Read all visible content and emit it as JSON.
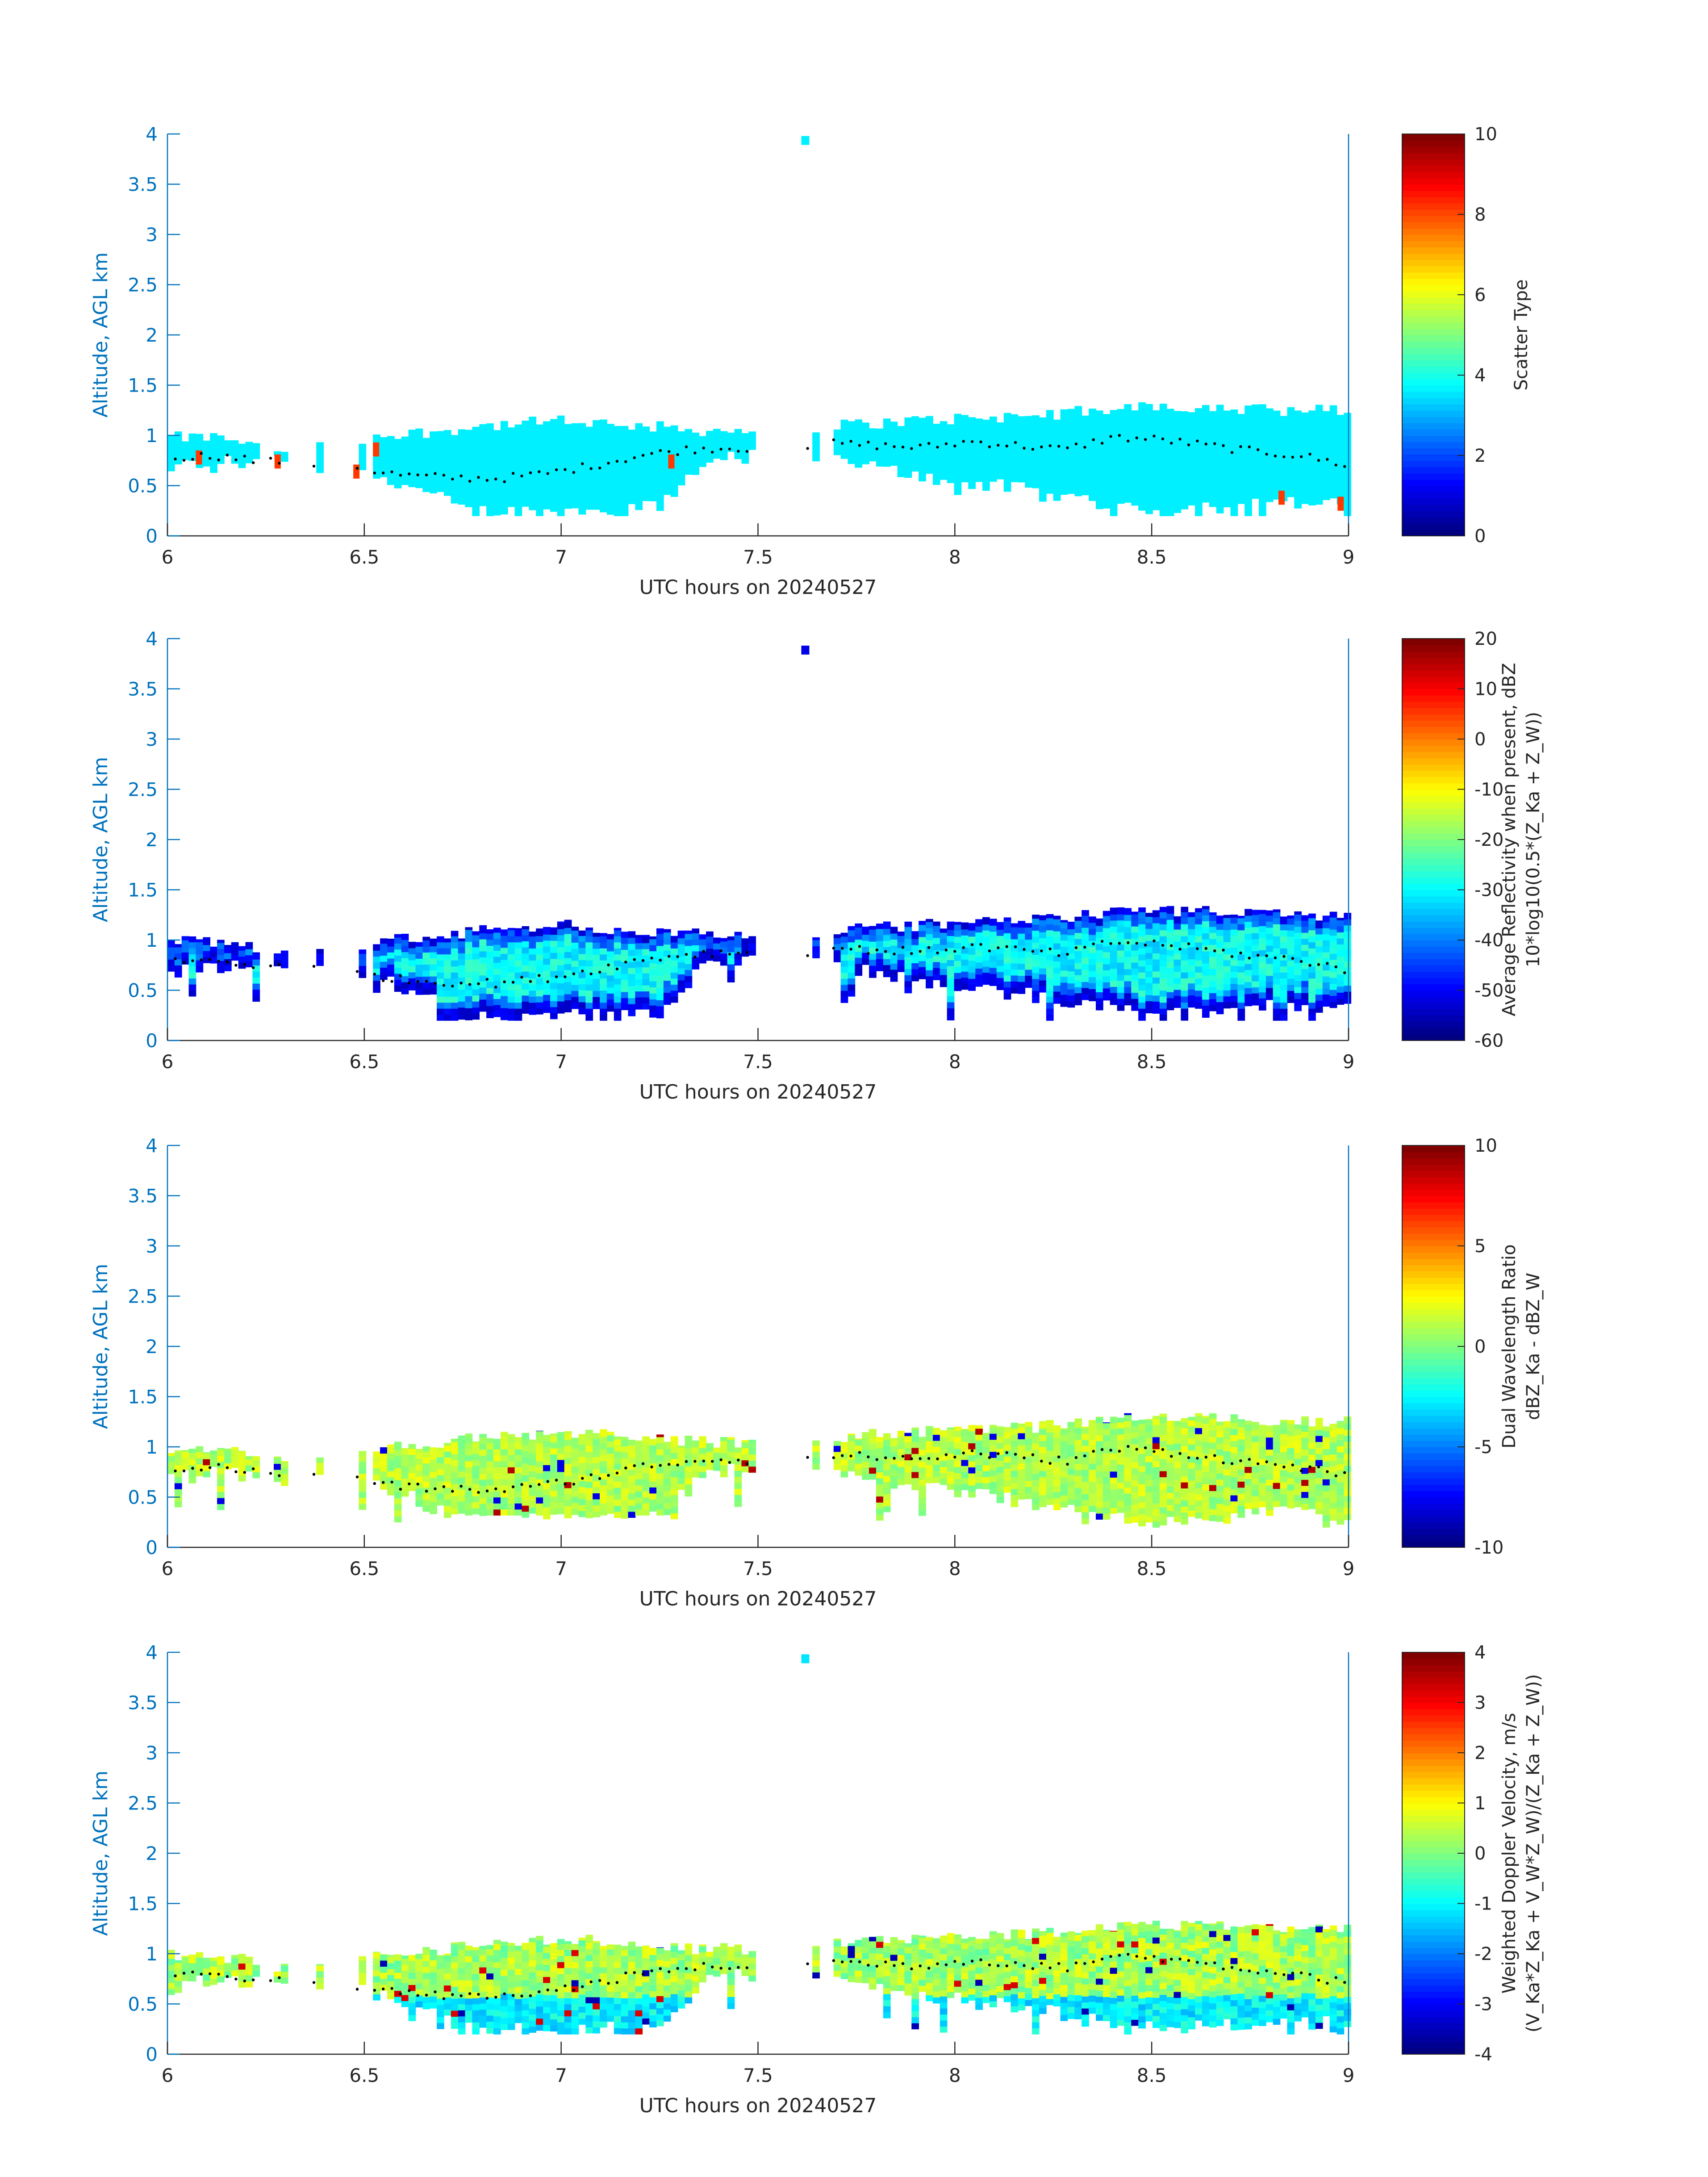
{
  "figure": {
    "colors": {
      "axis_y": "#0072BD",
      "axis_x": "#262626",
      "background": "#ffffff",
      "dots": "#000000"
    },
    "colormap": "jet"
  },
  "chart_data": [
    {
      "type": "heatmap",
      "id": "scatter",
      "xlabel": "UTC hours on 20240527",
      "ylabel": "Altitude, AGL km",
      "xlim": [
        6,
        9
      ],
      "ylim": [
        0,
        4
      ],
      "xticks": [
        "6",
        "6.5",
        "7",
        "7.5",
        "8",
        "8.5",
        "9"
      ],
      "yticks": [
        "0",
        "0.5",
        "1",
        "1.5",
        "2",
        "2.5",
        "3",
        "3.5",
        "4"
      ],
      "colorbar": {
        "label_lines": [
          "Scatter Type"
        ],
        "range": [
          0,
          10
        ],
        "ticks": [
          "0",
          "2",
          "4",
          "6",
          "8",
          "10"
        ]
      },
      "fill_value": 3.6,
      "dominant_value": 3.6,
      "cloud_profile": [
        {
          "x": 6.0,
          "bottom": 0.63,
          "top": 0.98
        },
        {
          "x": 6.1,
          "bottom": 0.7,
          "top": 0.98
        },
        {
          "x": 6.2,
          "bottom": 0.68,
          "top": 0.95
        },
        {
          "x": 6.27,
          "bottom": 0.7,
          "top": 0.85
        },
        {
          "x": 6.55,
          "bottom": 0.55,
          "top": 1.0
        },
        {
          "x": 6.7,
          "bottom": 0.3,
          "top": 1.05
        },
        {
          "x": 6.75,
          "bottom": 0.2,
          "top": 1.08
        },
        {
          "x": 7.0,
          "bottom": 0.2,
          "top": 1.15
        },
        {
          "x": 7.25,
          "bottom": 0.25,
          "top": 1.08
        },
        {
          "x": 7.35,
          "bottom": 0.7,
          "top": 1.05
        },
        {
          "x": 7.47,
          "bottom": 0.75,
          "top": 1.05
        },
        {
          "x": 7.7,
          "bottom": 0.7,
          "top": 1.1
        },
        {
          "x": 7.9,
          "bottom": 0.55,
          "top": 1.15
        },
        {
          "x": 8.2,
          "bottom": 0.4,
          "top": 1.2
        },
        {
          "x": 8.5,
          "bottom": 0.2,
          "top": 1.3
        },
        {
          "x": 8.8,
          "bottom": 0.3,
          "top": 1.25
        },
        {
          "x": 9.0,
          "bottom": 0.25,
          "top": 1.25
        }
      ],
      "gaps": [
        [
          6.22,
          6.26
        ],
        [
          6.29,
          6.37
        ],
        [
          6.39,
          6.47
        ],
        [
          6.49,
          6.52
        ],
        [
          7.48,
          7.62
        ],
        [
          7.64,
          7.68
        ]
      ],
      "isolated_cells": [
        {
          "x": 7.62,
          "y": 3.95,
          "value": 3.6
        }
      ],
      "highlight_cells": [
        {
          "x": 6.08,
          "y": 0.78,
          "value": 8.2
        },
        {
          "x": 6.28,
          "y": 0.74,
          "value": 8.2
        },
        {
          "x": 6.48,
          "y": 0.64,
          "value": 8.2
        },
        {
          "x": 6.53,
          "y": 0.86,
          "value": 8.2
        },
        {
          "x": 7.28,
          "y": 0.74,
          "value": 8.2
        },
        {
          "x": 8.83,
          "y": 0.38,
          "value": 8.2
        },
        {
          "x": 8.98,
          "y": 0.32,
          "value": 8.2
        }
      ],
      "dots": "cloud-base",
      "dot_values": [
        0.78,
        0.8,
        0.74,
        0.72,
        0.68,
        0.6,
        0.58,
        0.57,
        0.62,
        0.7,
        0.8,
        0.86,
        0.88,
        0.84,
        0.92,
        0.9,
        0.88,
        0.94,
        0.9,
        0.86,
        0.98,
        0.96,
        0.9,
        0.84,
        0.8,
        0.7
      ]
    },
    {
      "type": "heatmap",
      "id": "reflectivity",
      "xlabel": "UTC hours on 20240527",
      "ylabel": "Altitude, AGL km",
      "xlim": [
        6,
        9
      ],
      "ylim": [
        0,
        4
      ],
      "xticks": [
        "6",
        "6.5",
        "7",
        "7.5",
        "8",
        "8.5",
        "9"
      ],
      "yticks": [
        "0",
        "0.5",
        "1",
        "1.5",
        "2",
        "2.5",
        "3",
        "3.5",
        "4"
      ],
      "colorbar": {
        "label_lines": [
          "Average Reflectivity when present, dBZ",
          "10*log10(0.5*(Z_Ka + Z_W))"
        ],
        "range": [
          -60,
          20
        ],
        "ticks": [
          "-60",
          "-50",
          "-40",
          "-30",
          "-20",
          "-10",
          "0",
          "10",
          "20"
        ]
      },
      "dominant_value": -33,
      "edge_value": -52,
      "isolated_cells": [
        {
          "x": 7.62,
          "y": 3.9,
          "value": -52
        }
      ],
      "dots": "cloud-base"
    },
    {
      "type": "heatmap",
      "id": "dwr",
      "xlabel": "UTC hours on 20240527",
      "ylabel": "Altitude, AGL km",
      "xlim": [
        6,
        9
      ],
      "ylim": [
        0,
        4
      ],
      "xticks": [
        "6",
        "6.5",
        "7",
        "7.5",
        "8",
        "8.5",
        "9"
      ],
      "yticks": [
        "0",
        "0.5",
        "1",
        "1.5",
        "2",
        "2.5",
        "3",
        "3.5",
        "4"
      ],
      "colorbar": {
        "label_lines": [
          "Dual Wavelength Ratio",
          "dBZ_Ka - dBZ_W"
        ],
        "range": [
          -10,
          10
        ],
        "ticks": [
          "-10",
          "-5",
          "0",
          "5",
          "10"
        ]
      },
      "dominant_value": 1.0,
      "dots": "cloud-base"
    },
    {
      "type": "heatmap",
      "id": "velocity",
      "xlabel": "UTC hours on 20240527",
      "ylabel": "Altitude, AGL km",
      "xlim": [
        6,
        9
      ],
      "ylim": [
        0,
        4
      ],
      "xticks": [
        "6",
        "6.5",
        "7",
        "7.5",
        "8",
        "8.5",
        "9"
      ],
      "yticks": [
        "0",
        "0.5",
        "1",
        "1.5",
        "2",
        "2.5",
        "3",
        "3.5",
        "4"
      ],
      "colorbar": {
        "label_lines": [
          "Weighted Doppler Velocity, m/s",
          "(V_Ka*Z_Ka + V_W*Z_W)/(Z_Ka + Z_W))"
        ],
        "range": [
          -4,
          4
        ],
        "ticks": [
          "-4",
          "-3",
          "-2",
          "-1",
          "0",
          "1",
          "2",
          "3",
          "4"
        ]
      },
      "dominant_value": 0.2,
      "lower_value": -1.2,
      "isolated_cells": [
        {
          "x": 7.62,
          "y": 3.95,
          "value": -1.2
        }
      ],
      "dots": "cloud-base"
    }
  ]
}
